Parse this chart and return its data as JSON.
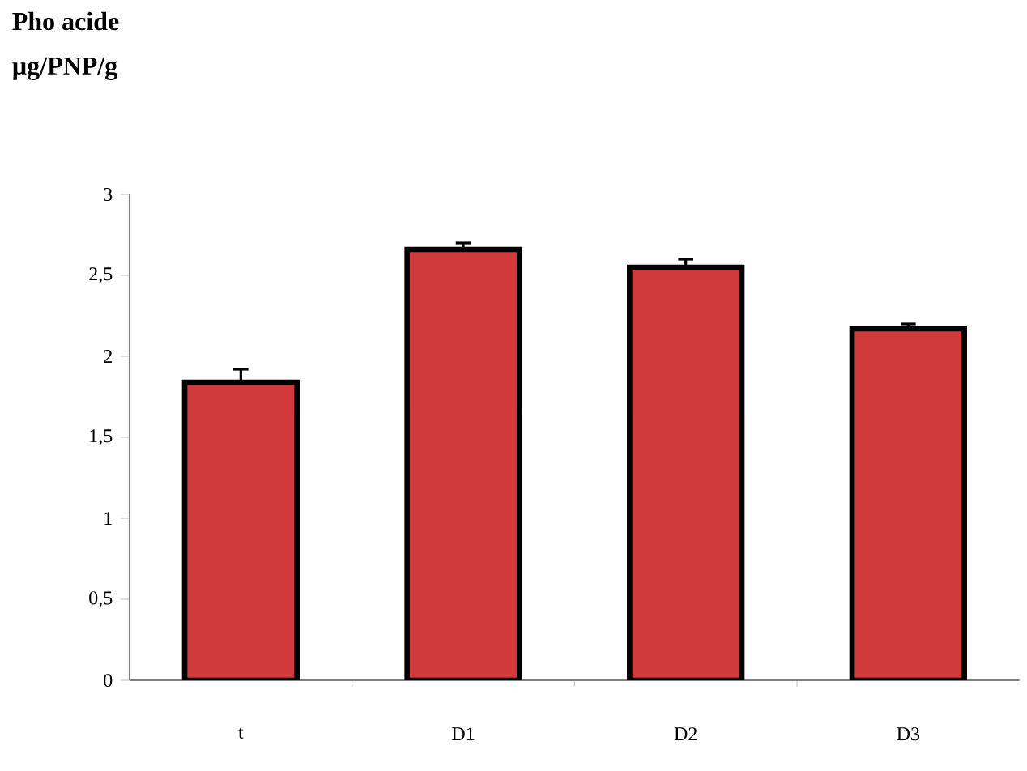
{
  "chart_data": {
    "type": "bar",
    "title": "Pho acide",
    "ylabel": "µg/PNP/g",
    "categories": [
      "t",
      "D1",
      "D2",
      "D3"
    ],
    "values": [
      1.84,
      2.66,
      2.55,
      2.17
    ],
    "errors": [
      0.08,
      0.04,
      0.05,
      0.03
    ],
    "color": "#d13a3a",
    "ylim": [
      0,
      3
    ],
    "yticks": [
      0,
      {
        "value": 0.5,
        "label": "0,5"
      },
      1,
      {
        "value": 1.5,
        "label": "1,5"
      },
      2,
      {
        "value": 2.5,
        "label": "2,5"
      },
      3
    ],
    "grid": false
  }
}
